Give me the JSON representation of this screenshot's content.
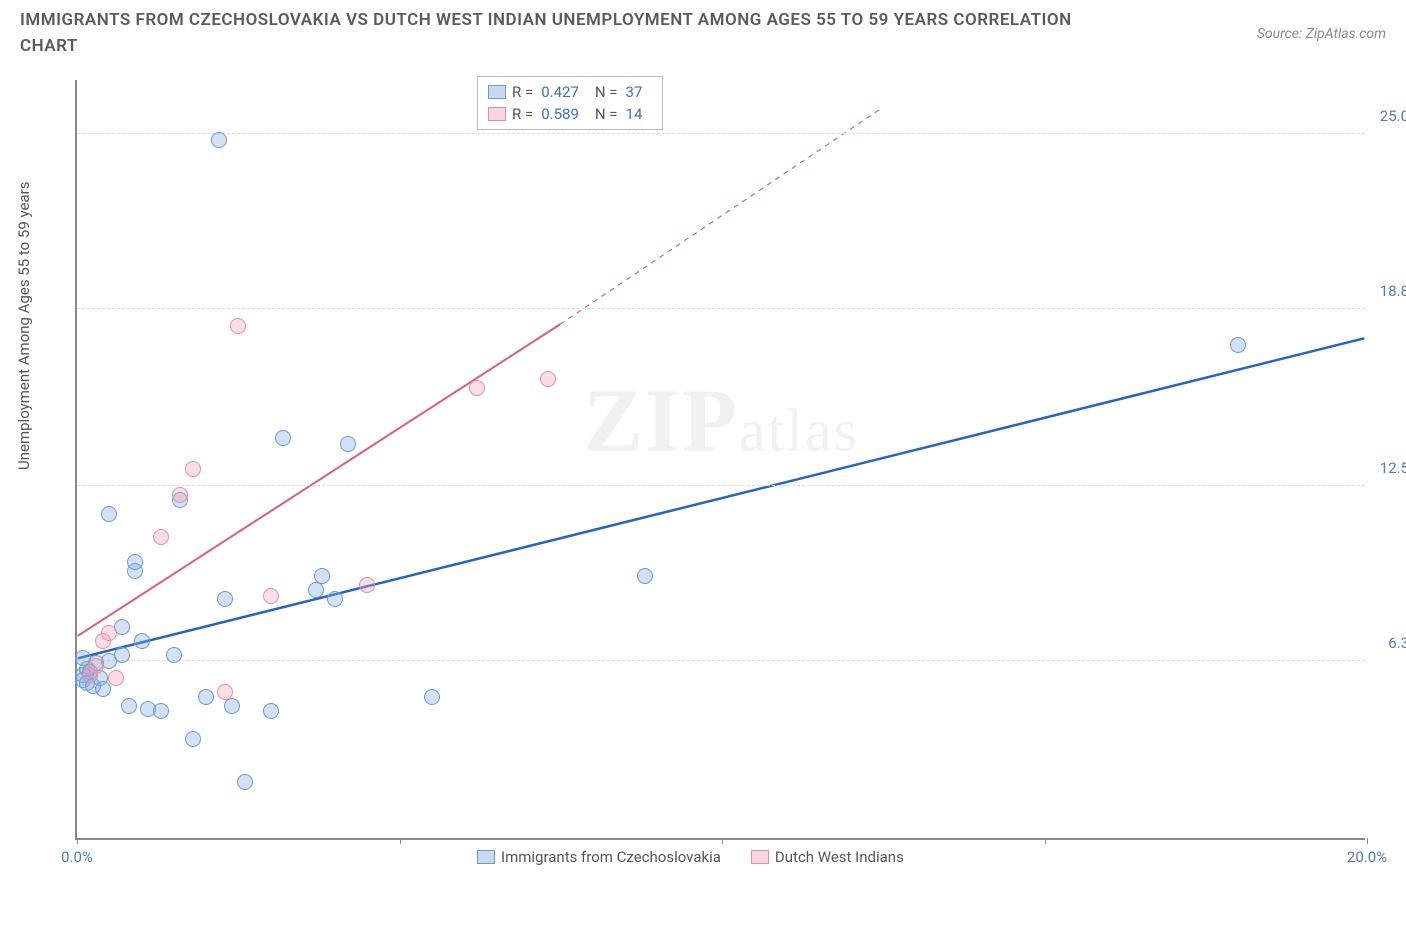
{
  "title": "IMMIGRANTS FROM CZECHOSLOVAKIA VS DUTCH WEST INDIAN UNEMPLOYMENT AMONG AGES 55 TO 59 YEARS CORRELATION CHART",
  "source": "Source: ZipAtlas.com",
  "ylabel": "Unemployment Among Ages 55 to 59 years",
  "watermark_main": "ZIP",
  "watermark_sub": "atlas",
  "chart": {
    "type": "scatter",
    "xlim": [
      0,
      20
    ],
    "ylim": [
      0,
      27
    ],
    "background_color": "#ffffff",
    "grid_color": "#dddddd",
    "grid_dashed": true,
    "x_ticks": [
      0,
      5,
      10,
      15,
      20
    ],
    "x_labels": [
      {
        "v": 0,
        "t": "0.0%"
      },
      {
        "v": 20,
        "t": "20.0%"
      }
    ],
    "y_grid": [
      6.3,
      12.5,
      18.8,
      25.0
    ],
    "y_labels_right": [
      {
        "v": 6.3,
        "t": "6.3%"
      },
      {
        "v": 12.5,
        "t": "12.5%"
      },
      {
        "v": 18.8,
        "t": "18.8%"
      },
      {
        "v": 25.0,
        "t": "25.0%"
      }
    ],
    "series": [
      {
        "name": "Immigrants from Czechoslovakia",
        "color": "#6a9bd8",
        "fill": "rgba(130,170,220,0.35)",
        "r_label": "R =",
        "r_value": "0.427",
        "n_label": "N =",
        "n_value": "37",
        "trend": {
          "x1": 0,
          "y1": 6.4,
          "x2": 20,
          "y2": 17.8,
          "solid_color": "#2563c9",
          "width": 2.5
        },
        "points": [
          [
            0.1,
            5.8
          ],
          [
            0.1,
            5.6
          ],
          [
            0.15,
            5.5
          ],
          [
            0.15,
            6.0
          ],
          [
            0.2,
            5.9
          ],
          [
            0.25,
            5.4
          ],
          [
            0.3,
            6.2
          ],
          [
            0.35,
            5.7
          ],
          [
            0.1,
            6.4
          ],
          [
            0.5,
            6.3
          ],
          [
            0.5,
            11.5
          ],
          [
            0.7,
            6.5
          ],
          [
            0.8,
            4.7
          ],
          [
            0.9,
            9.5
          ],
          [
            0.9,
            9.8
          ],
          [
            1.0,
            7.0
          ],
          [
            1.1,
            4.6
          ],
          [
            1.3,
            4.5
          ],
          [
            1.5,
            6.5
          ],
          [
            1.6,
            12.0
          ],
          [
            1.8,
            3.5
          ],
          [
            2.0,
            5.0
          ],
          [
            2.3,
            8.5
          ],
          [
            2.4,
            4.7
          ],
          [
            2.6,
            2.0
          ],
          [
            3.0,
            4.5
          ],
          [
            3.2,
            14.2
          ],
          [
            3.7,
            8.8
          ],
          [
            3.8,
            9.3
          ],
          [
            4.0,
            8.5
          ],
          [
            4.2,
            14.0
          ],
          [
            5.5,
            5.0
          ],
          [
            8.8,
            9.3
          ],
          [
            2.2,
            24.8
          ],
          [
            18.0,
            17.5
          ],
          [
            0.4,
            5.3
          ],
          [
            0.7,
            7.5
          ]
        ]
      },
      {
        "name": "Dutch West Indians",
        "color": "#e88ca5",
        "fill": "rgba(240,160,180,0.35)",
        "r_label": "R =",
        "r_value": "0.589",
        "n_label": "N =",
        "n_value": "14",
        "trend": {
          "x1": 0,
          "y1": 7.2,
          "x2": 7.5,
          "y2": 18.3,
          "dashed_to_x": 12.5,
          "dashed_to_y": 26.0,
          "solid_color": "#e05a85",
          "width": 2
        },
        "points": [
          [
            0.2,
            5.8
          ],
          [
            0.3,
            6.1
          ],
          [
            0.4,
            7.0
          ],
          [
            0.5,
            7.3
          ],
          [
            0.6,
            5.7
          ],
          [
            1.3,
            10.7
          ],
          [
            1.6,
            12.2
          ],
          [
            1.8,
            13.1
          ],
          [
            2.3,
            5.2
          ],
          [
            2.5,
            18.2
          ],
          [
            3.0,
            8.6
          ],
          [
            4.5,
            9.0
          ],
          [
            6.2,
            16.0
          ],
          [
            7.3,
            16.3
          ]
        ]
      }
    ]
  }
}
